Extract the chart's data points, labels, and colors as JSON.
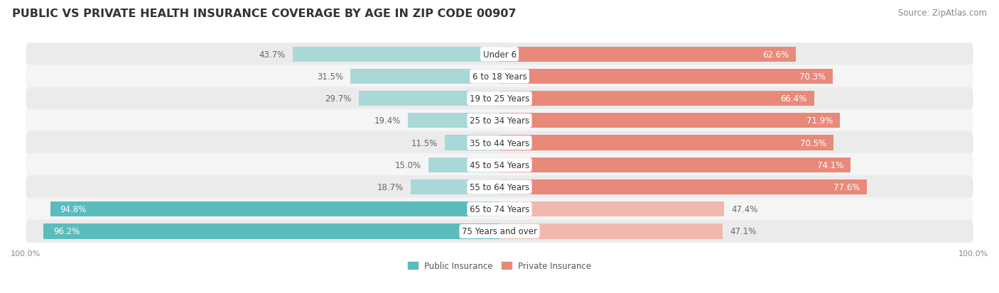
{
  "title": "PUBLIC VS PRIVATE HEALTH INSURANCE COVERAGE BY AGE IN ZIP CODE 00907",
  "source": "Source: ZipAtlas.com",
  "categories": [
    "Under 6",
    "6 to 18 Years",
    "19 to 25 Years",
    "25 to 34 Years",
    "35 to 44 Years",
    "45 to 54 Years",
    "55 to 64 Years",
    "65 to 74 Years",
    "75 Years and over"
  ],
  "public_values": [
    43.7,
    31.5,
    29.7,
    19.4,
    11.5,
    15.0,
    18.7,
    94.8,
    96.2
  ],
  "private_values": [
    62.6,
    70.3,
    66.4,
    71.9,
    70.5,
    74.1,
    77.6,
    47.4,
    47.1
  ],
  "public_color": "#5bbcbe",
  "private_color": "#e8897a",
  "public_color_light": "#a8d8d8",
  "private_color_light": "#f0b8ae",
  "row_bg_even": "#ebebeb",
  "row_bg_odd": "#f5f5f5",
  "title_fontsize": 11.5,
  "source_fontsize": 8.5,
  "value_fontsize": 8.5,
  "cat_fontsize": 8.5,
  "legend_fontsize": 8.5,
  "axis_label_fontsize": 8,
  "max_value": 100.0
}
